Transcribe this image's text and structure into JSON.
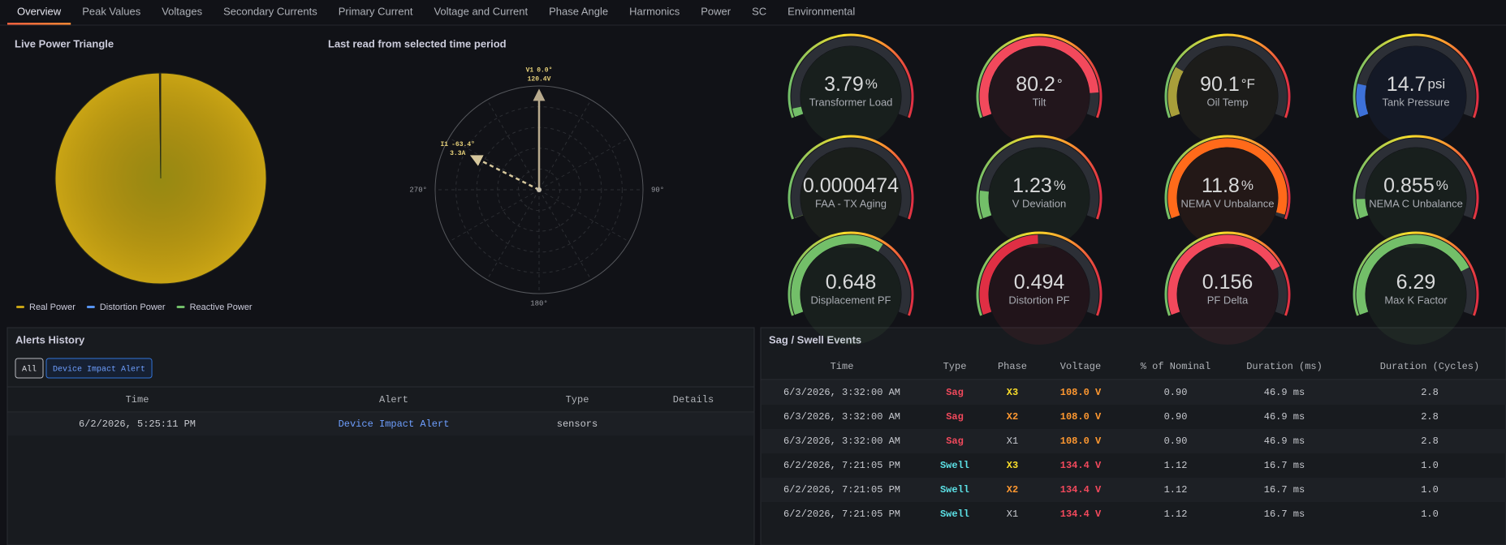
{
  "tabs": [
    "Overview",
    "Peak Values",
    "Voltages",
    "Secondary Currents",
    "Primary Current",
    "Voltage and Current",
    "Phase Angle",
    "Harmonics",
    "Power",
    "SC",
    "Environmental"
  ],
  "chart_data": [
    {
      "type": "pie",
      "title": "Live Power Triangle",
      "categories": [
        "Real Power",
        "Distortion Power",
        "Reactive Power"
      ],
      "values": [
        99.8,
        0.1,
        0.1
      ],
      "colors": [
        "#c9a414",
        "#5794f2",
        "#73bf69"
      ]
    },
    {
      "type": "polar",
      "title": "Last read from selected time period",
      "angle_ticks": [
        {
          "value": 270,
          "label": "270°"
        },
        {
          "value": 90,
          "label": "90°"
        },
        {
          "value": 180,
          "label": "180°"
        }
      ],
      "series": [
        {
          "name": "V1",
          "angle": 0.0,
          "angle_label": "0.0°",
          "magnitude": 120.4,
          "magnitude_label": "120.4V",
          "color": "#b9ab8e"
        },
        {
          "name": "I1",
          "angle": -63.4,
          "angle_label": "-63.4°",
          "magnitude": 3.3,
          "magnitude_label": "3.3A",
          "color": "#d6c79c"
        }
      ]
    }
  ],
  "gauges": [
    {
      "label": "Transformer Load",
      "value": 3.79,
      "unit": "%",
      "min": 0,
      "max": 100,
      "color": "#73bf69"
    },
    {
      "label": "Tilt",
      "value": 80.2,
      "unit": "°",
      "min": 0,
      "max": 90,
      "color": "#f2495c"
    },
    {
      "label": "Oil Temp",
      "value": 90.1,
      "unit": "°F",
      "min": 0,
      "max": 400,
      "color": "#a89f3a"
    },
    {
      "label": "Tank Pressure",
      "value": 14.7,
      "unit": "psi",
      "min": 0,
      "max": 100,
      "color": "#3d71d9"
    },
    {
      "label": "FAA - TX Aging",
      "value": 4.74e-05,
      "min": 0,
      "max": 1,
      "color": "#8ab84a"
    },
    {
      "label": "V Deviation",
      "value": 1.23,
      "unit": "%",
      "min": 0,
      "max": 10,
      "color": "#73bf69"
    },
    {
      "label": "NEMA V Unbalance",
      "value": 11.8,
      "unit": "%",
      "min": 0,
      "max": 12,
      "color": "#ff6a1a"
    },
    {
      "label": "NEMA C Unbalance",
      "value": 0.855,
      "unit": "%",
      "min": 0,
      "max": 10,
      "color": "#73bf69"
    },
    {
      "label": "Displacement PF",
      "value": 0.648,
      "min": 0,
      "max": 1,
      "color": "#73bf69"
    },
    {
      "label": "Distortion PF",
      "value": 0.494,
      "min": 0,
      "max": 1,
      "color": "#e02f44"
    },
    {
      "label": "PF Delta",
      "value": 0.156,
      "min": 0,
      "max": 0.2,
      "color": "#f2495c"
    },
    {
      "label": "Max K Factor",
      "value": 6.29,
      "min": 0,
      "max": 8,
      "color": "#73bf69"
    }
  ],
  "alerts": {
    "title": "Alerts History",
    "filters": [
      "All",
      "Device Impact Alert"
    ],
    "columns": [
      "Time",
      "Alert",
      "Type",
      "Details"
    ],
    "rows": [
      {
        "time": "6/2/2026, 5:25:11 PM",
        "alert": "Device Impact Alert",
        "type": "sensors",
        "alert_color": "#6e9fff"
      }
    ]
  },
  "sag_swell": {
    "title": "Sag / Swell Events",
    "columns": [
      "Time",
      "Type",
      "Phase",
      "Voltage",
      "% of Nominal",
      "Duration (ms)",
      "Duration (Cycles)"
    ],
    "rows": [
      {
        "time": "6/3/2026, 3:32:00 AM",
        "type": "Sag",
        "phase": "X3",
        "voltage": "108.0 V",
        "percent_nominal": "0.90",
        "duration_ms": "46.9 ms",
        "duration_cycles": "2.8",
        "type_color": "#f2495c",
        "phase_color": "#fade2a",
        "voltage_color": "#ff9830"
      },
      {
        "time": "6/3/2026, 3:32:00 AM",
        "type": "Sag",
        "phase": "X2",
        "voltage": "108.0 V",
        "percent_nominal": "0.90",
        "duration_ms": "46.9 ms",
        "duration_cycles": "2.8",
        "type_color": "#f2495c",
        "phase_color": "#ff9830",
        "voltage_color": "#ff9830"
      },
      {
        "time": "6/3/2026, 3:32:00 AM",
        "type": "Sag",
        "phase": "X1",
        "voltage": "108.0 V",
        "percent_nominal": "0.90",
        "duration_ms": "46.9 ms",
        "duration_cycles": "2.8",
        "type_color": "#f2495c",
        "voltage_color": "#ff9830"
      },
      {
        "time": "6/2/2026, 7:21:05 PM",
        "type": "Swell",
        "phase": "X3",
        "voltage": "134.4 V",
        "percent_nominal": "1.12",
        "duration_ms": "16.7 ms",
        "duration_cycles": "1.0",
        "type_color": "#5ce1e6",
        "phase_color": "#fade2a",
        "voltage_color": "#f2495c"
      },
      {
        "time": "6/2/2026, 7:21:05 PM",
        "type": "Swell",
        "phase": "X2",
        "voltage": "134.4 V",
        "percent_nominal": "1.12",
        "duration_ms": "16.7 ms",
        "duration_cycles": "1.0",
        "type_color": "#5ce1e6",
        "phase_color": "#ff9830",
        "voltage_color": "#f2495c"
      },
      {
        "time": "6/2/2026, 7:21:05 PM",
        "type": "Swell",
        "phase": "X1",
        "voltage": "134.4 V",
        "percent_nominal": "1.12",
        "duration_ms": "16.7 ms",
        "duration_cycles": "1.0",
        "type_color": "#5ce1e6",
        "voltage_color": "#f2495c"
      }
    ]
  }
}
